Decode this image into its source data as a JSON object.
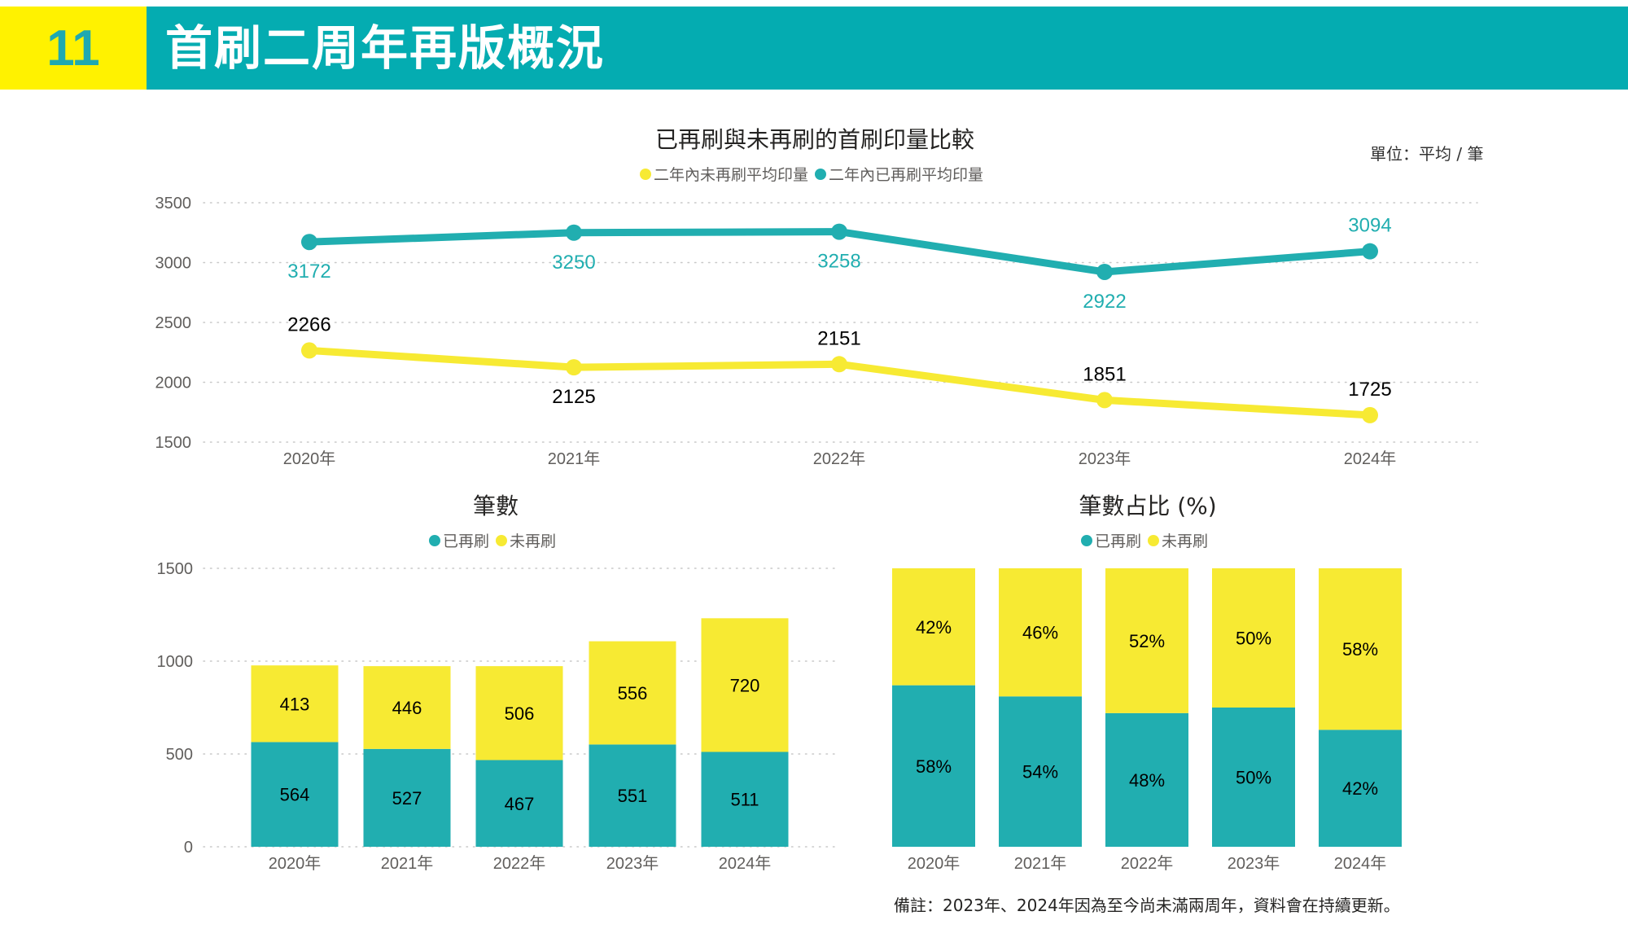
{
  "header": {
    "number": "11",
    "title": "首刷二周年再版概況"
  },
  "colors": {
    "teal": "#21aeb0",
    "yellow": "#f7ea33",
    "header_teal": "#04acb1",
    "header_yellow": "#fff200"
  },
  "unit_label": "單位：平均 / 筆",
  "footnote": "備註：2023年、2024年因為至今尚未滿兩周年，資料會在持續更新。",
  "chart_data": [
    {
      "type": "line",
      "title": "已再刷與未再刷的首刷印量比較",
      "categories": [
        "2020年",
        "2021年",
        "2022年",
        "2023年",
        "2024年"
      ],
      "series": [
        {
          "name": "二年內未再刷平均印量",
          "color": "#f7ea33",
          "values": [
            2266,
            2125,
            2151,
            1851,
            1725
          ]
        },
        {
          "name": "二年內已再刷平均印量",
          "color": "#21aeb0",
          "values": [
            3172,
            3250,
            3258,
            2922,
            3094
          ]
        }
      ],
      "yticks": [
        "1500",
        "2000",
        "2500",
        "3000",
        "3500"
      ],
      "ylim": [
        1500,
        3500
      ],
      "grid": true,
      "legend": "top-center",
      "xlabel": "",
      "ylabel": ""
    },
    {
      "type": "bar",
      "stacked": true,
      "title": "筆數",
      "categories": [
        "2020年",
        "2021年",
        "2022年",
        "2023年",
        "2024年"
      ],
      "series": [
        {
          "name": "已再刷",
          "color": "#21aeb0",
          "values": [
            564,
            527,
            467,
            551,
            511
          ]
        },
        {
          "name": "未再刷",
          "color": "#f7ea33",
          "values": [
            413,
            446,
            506,
            556,
            720
          ]
        }
      ],
      "yticks": [
        "0",
        "500",
        "1000",
        "1500"
      ],
      "ylim": [
        0,
        1500
      ],
      "grid": true,
      "legend": "top-center",
      "xlabel": "",
      "ylabel": ""
    },
    {
      "type": "bar",
      "stacked": true,
      "percent": true,
      "title": "筆數占比 (%)",
      "categories": [
        "2020年",
        "2021年",
        "2022年",
        "2023年",
        "2024年"
      ],
      "series": [
        {
          "name": "已再刷",
          "color": "#21aeb0",
          "values": [
            58,
            54,
            48,
            50,
            42
          ],
          "labels": [
            "58%",
            "54%",
            "48%",
            "50%",
            "42%"
          ]
        },
        {
          "name": "未再刷",
          "color": "#f7ea33",
          "values": [
            42,
            46,
            52,
            50,
            58
          ],
          "labels": [
            "42%",
            "46%",
            "52%",
            "50%",
            "58%"
          ]
        }
      ],
      "ylim": [
        0,
        100
      ],
      "grid": false,
      "legend": "top-center",
      "xlabel": "",
      "ylabel": ""
    }
  ]
}
